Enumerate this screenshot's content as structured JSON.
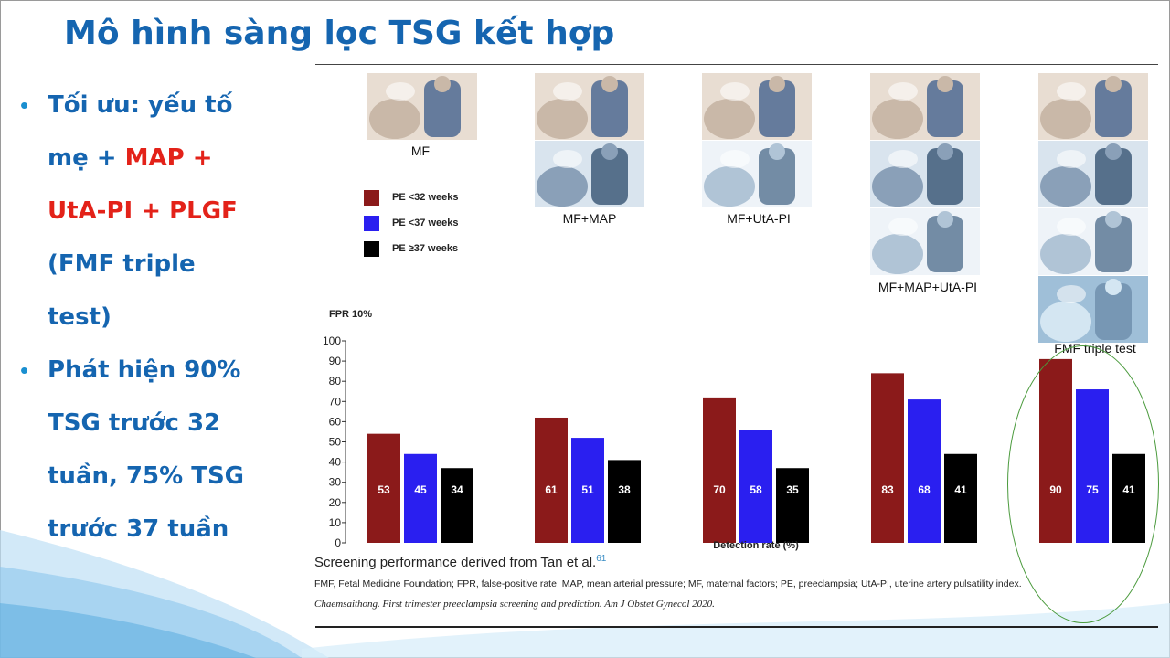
{
  "slide": {
    "title": "Mô hình sàng lọc TSG kết hợp",
    "bullets": [
      {
        "lines": [
          [
            {
              "t": "Tối ưu: yếu tố",
              "c": "blue"
            }
          ],
          [
            {
              "t": "mẹ + ",
              "c": "blue"
            },
            {
              "t": "MAP +",
              "c": "red"
            }
          ],
          [
            {
              "t": "UtA-PI + PLGF",
              "c": "red"
            }
          ],
          [
            {
              "t": "(FMF triple",
              "c": "blue"
            }
          ],
          [
            {
              "t": "test)",
              "c": "blue"
            }
          ]
        ]
      },
      {
        "lines": [
          [
            {
              "t": "Phát hiện 90%",
              "c": "blue"
            }
          ],
          [
            {
              "t": "TSG trước 32",
              "c": "blue"
            }
          ],
          [
            {
              "t": "tuần, 75% TSG",
              "c": "blue"
            }
          ],
          [
            {
              "t": "trước 37 tuần",
              "c": "blue"
            }
          ]
        ]
      }
    ],
    "bullet_symbol": "•",
    "colors": {
      "blue": "#1565b0",
      "red": "#e32219"
    }
  },
  "figure": {
    "group_captions": [
      "MF",
      "MF+MAP",
      "MF+UtA-PI",
      "MF+MAP+UtA-PI",
      "FMF triple test"
    ],
    "photo_icons": [
      "pregnant-consultation-icon",
      "blood-pressure-icon",
      "ultrasound-icon",
      "blood-sample-icon"
    ],
    "caption_main": "Screening performance derived from Tan et al.",
    "caption_ref": "61",
    "caption_abbrev": "FMF, Fetal Medicine Foundation; FPR, false-positive rate; MAP, mean arterial pressure; MF, maternal factors; PE, preeclampsia; UtA-PI, uterine artery pulsatility index.",
    "caption_citation": "Chaemsaithong. First trimester preeclampsia screening and prediction. Am J Obstet Gynecol 2020."
  },
  "chart_data": {
    "type": "bar",
    "title": "FPR 10%",
    "xlabel": "Detection rate (%)",
    "ylabel": "",
    "categories": [
      "MF",
      "MF+MAP",
      "MF+UtA-PI",
      "MF+MAP+UtA-PI",
      "FMF triple test"
    ],
    "series": [
      {
        "name": "PE <32 weeks",
        "color": "#8b1a1a",
        "values": [
          53,
          61,
          70,
          83,
          90
        ]
      },
      {
        "name": "PE <37 weeks",
        "color": "#2a1ff0",
        "values": [
          45,
          51,
          58,
          68,
          75
        ]
      },
      {
        "name": "PE ≥37 weeks",
        "color": "#000000",
        "values": [
          34,
          38,
          35,
          41,
          41
        ]
      }
    ],
    "display_heights": [
      [
        54,
        62,
        72,
        84,
        91
      ],
      [
        44,
        52,
        56,
        71,
        76
      ],
      [
        37,
        41,
        37,
        44,
        44
      ]
    ],
    "ylim": [
      0,
      100
    ],
    "yticks": [
      0,
      10,
      20,
      30,
      40,
      50,
      60,
      70,
      80,
      90,
      100
    ],
    "grid": false,
    "legend": "top-left",
    "highlight_category": "FMF triple test"
  }
}
